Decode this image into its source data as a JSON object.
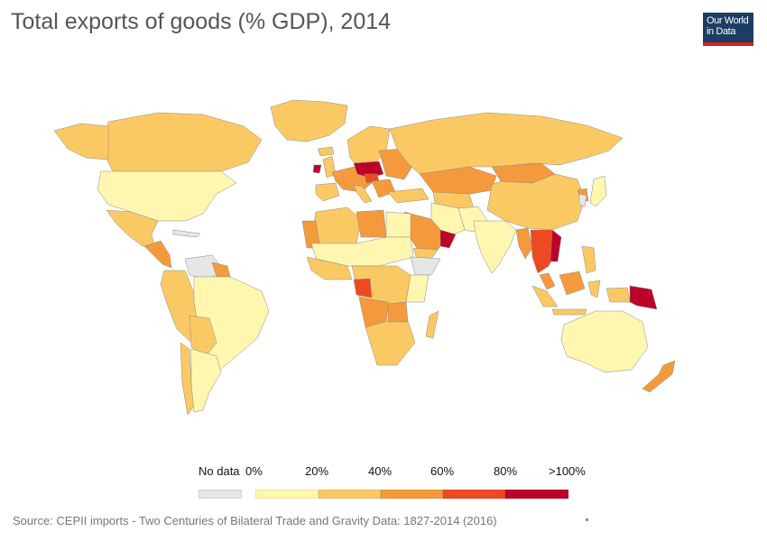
{
  "header": {
    "title": "Total exports of goods (% GDP), 2014"
  },
  "logo": {
    "line1": "Our World",
    "line2": "in Data",
    "colors": {
      "background": "#1d3d63",
      "underline": "#ce261e"
    }
  },
  "legend": {
    "no_data_label": "No data",
    "no_data_color": "#e6e6e6",
    "bins": [
      {
        "color": "#fff7b0",
        "from_label": "0%",
        "to_label": "20%"
      },
      {
        "color": "#fbc964",
        "from_label": "20%",
        "to_label": "40%"
      },
      {
        "color": "#f59a3c",
        "from_label": "40%",
        "to_label": "60%"
      },
      {
        "color": "#ee4a22",
        "from_label": "60%",
        "to_label": "80%"
      },
      {
        "color": "#bc0227",
        "from_label": "80%",
        "to_label": ">100%"
      }
    ],
    "tick_labels": [
      "0%",
      "20%",
      "40%",
      "60%",
      "80%",
      ">100%"
    ]
  },
  "footer": {
    "source": "Source: CEPII imports - Two Centuries of Bilateral Trade and Gravity Data: 1827-2014 (2016)"
  }
}
